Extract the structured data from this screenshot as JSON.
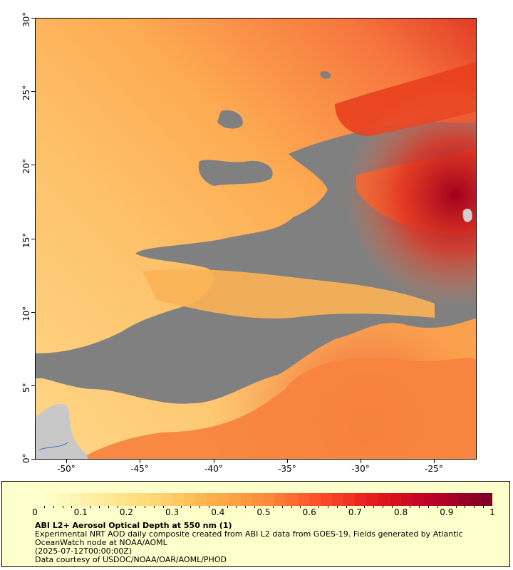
{
  "map": {
    "lat_labels": [
      "30°",
      "25°",
      "20°",
      "15°",
      "10°",
      "5°",
      "0°"
    ],
    "lon_labels": [
      "-50°",
      "-45°",
      "-40°",
      "-35°",
      "-30°",
      "-25°"
    ],
    "no_data_color": "#808080",
    "land_color": "#c8c8c8",
    "palette": [
      "#ffffd0",
      "#ffeda0",
      "#fed976",
      "#feb24c",
      "#fd8d3c",
      "#fc4e2a",
      "#e31a1c",
      "#bd0026",
      "#800026"
    ]
  },
  "colorbar": {
    "tick_labels": [
      "0",
      "0.1",
      "0.2",
      "0.3",
      "0.4",
      "0.5",
      "0.6",
      "0.7",
      "0.8",
      "0.9",
      "1"
    ]
  },
  "legend": {
    "title": "ABI L2+ Aerosol Optical Depth at 550 nm (1)",
    "description": "Experimental NRT AOD daily composite created from ABI L2 data from GOES-19. Fields generated by Atlantic OceanWatch node at NOAA/AOML",
    "timestamp": "(2025-07-12T00:00:00Z)",
    "credit": "Data courtesy of USDOC/NOAA/OAR/AOML/PHOD"
  }
}
